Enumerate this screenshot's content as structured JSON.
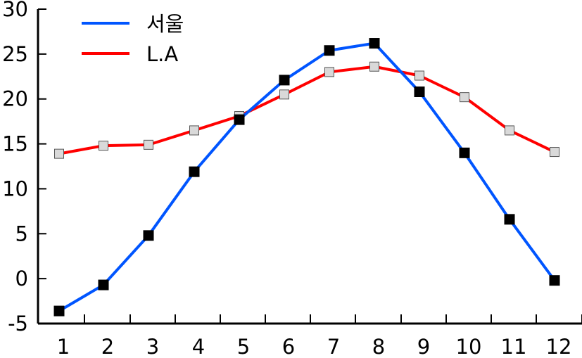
{
  "chart_data": {
    "type": "line",
    "title": "",
    "xlabel": "",
    "ylabel": "",
    "x": [
      1,
      2,
      3,
      4,
      5,
      6,
      7,
      8,
      9,
      10,
      11,
      12
    ],
    "x_tick_labels": [
      "1",
      "2",
      "3",
      "4",
      "5",
      "6",
      "7",
      "8",
      "9",
      "10",
      "11",
      "12"
    ],
    "y_ticks": [
      -5,
      0,
      5,
      10,
      15,
      20,
      25,
      30
    ],
    "y_tick_labels": [
      "-5",
      "0",
      "5",
      "10",
      "15",
      "20",
      "25",
      "30"
    ],
    "ylim": [
      -5,
      30
    ],
    "grid": false,
    "legend_position": "top-left",
    "series": [
      {
        "name": "서울",
        "color": "#0055ff",
        "marker": "filled-square",
        "marker_color": "#000000",
        "values": [
          -3.6,
          -0.7,
          4.8,
          11.9,
          17.7,
          22.1,
          25.4,
          26.2,
          20.8,
          14.0,
          6.6,
          -0.2
        ]
      },
      {
        "name": "L.A",
        "color": "#ff0000",
        "marker": "light-square",
        "marker_color": "#d9d9d9",
        "values": [
          13.9,
          14.8,
          14.9,
          16.5,
          18.1,
          20.5,
          23.0,
          23.6,
          22.6,
          20.2,
          16.5,
          14.1
        ]
      }
    ]
  }
}
